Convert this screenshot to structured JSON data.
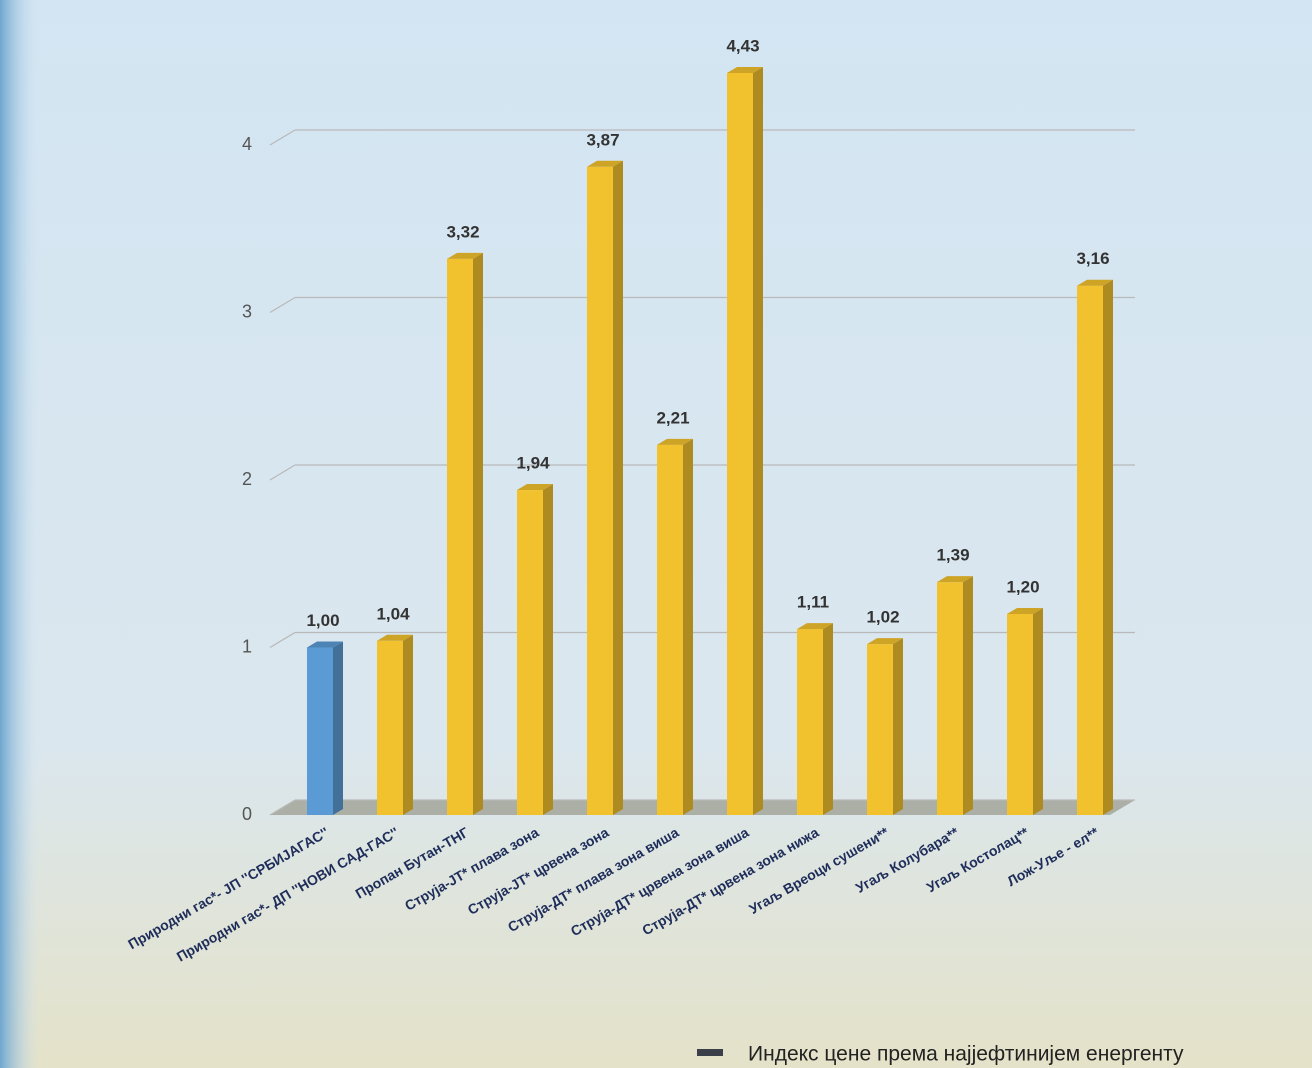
{
  "chart_data": {
    "type": "bar3d",
    "categories": [
      "Природни гас*- ЈП ''СРБИЈАГАС''",
      "Природни гас*- ДП ''НОВИ САД-ГАС''",
      "Пропан Бутан-ТНГ",
      "Струја-ЈТ*   плава зона",
      "Струја-ЈТ*   црвена зона",
      "Струја-ДТ*   плава зона   виша",
      "Струја-ДТ*  црвена зона виша",
      "Струја-ДТ*  црвена зона нижа",
      "Угаљ Вреоци сушени**",
      "Угаљ Колубара**",
      "Угаљ Костолац**",
      "Лож-Уље - ел**"
    ],
    "series": [
      {
        "name": "Индекс цене према најјефтинијем енергенту",
        "color": "#3a3f4a",
        "values": [
          1.0,
          1.04,
          3.32,
          1.94,
          3.87,
          2.21,
          4.43,
          1.11,
          1.02,
          1.39,
          1.2,
          3.16
        ],
        "value_labels": [
          "1,00",
          "1,04",
          "3,32",
          "1,94",
          "3,87",
          "2,21",
          "4,43",
          "1,11",
          "1,02",
          "1,39",
          "1,20",
          "3,16"
        ],
        "colors": [
          "#5b9bd5",
          "#f2c12e",
          "#f2c12e",
          "#f2c12e",
          "#f2c12e",
          "#f2c12e",
          "#f2c12e",
          "#f2c12e",
          "#f2c12e",
          "#f2c12e",
          "#f2c12e",
          "#f2c12e"
        ]
      }
    ],
    "ylim": [
      0,
      4.5
    ],
    "yticks": [
      0,
      1,
      2,
      3,
      4
    ],
    "grid": true,
    "legend": "bottom-right"
  }
}
